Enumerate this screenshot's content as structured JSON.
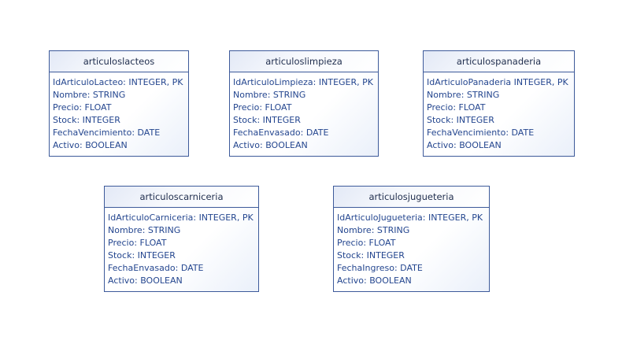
{
  "entities": [
    {
      "name": "articuloslacteos",
      "attributes": [
        "IdArticuloLacteo: INTEGER, PK",
        "Nombre: STRING",
        "Precio: FLOAT",
        "Stock: INTEGER",
        "FechaVencimiento: DATE",
        "Activo: BOOLEAN"
      ]
    },
    {
      "name": "articuloslimpieza",
      "attributes": [
        "IdArticuloLimpieza: INTEGER, PK",
        "Nombre: STRING",
        "Precio: FLOAT",
        "Stock: INTEGER",
        "FechaEnvasado: DATE",
        "Activo: BOOLEAN"
      ]
    },
    {
      "name": "articulospanaderia",
      "attributes": [
        "IdArticuloPanaderia INTEGER, PK",
        "Nombre: STRING",
        "Precio: FLOAT",
        "Stock: INTEGER",
        "FechaVencimiento: DATE",
        "Activo: BOOLEAN"
      ]
    },
    {
      "name": "articuloscarniceria",
      "attributes": [
        "IdArticuloCarniceria: INTEGER, PK",
        "Nombre: STRING",
        "Precio: FLOAT",
        "Stock: INTEGER",
        "FechaEnvasado: DATE",
        "Activo: BOOLEAN"
      ]
    },
    {
      "name": "articulosjugueteria",
      "attributes": [
        "IdArticuloJugueteria: INTEGER, PK",
        "Nombre: STRING",
        "Precio: FLOAT",
        "Stock: INTEGER",
        "FechaIngreso: DATE",
        "Activo: BOOLEAN"
      ]
    }
  ]
}
